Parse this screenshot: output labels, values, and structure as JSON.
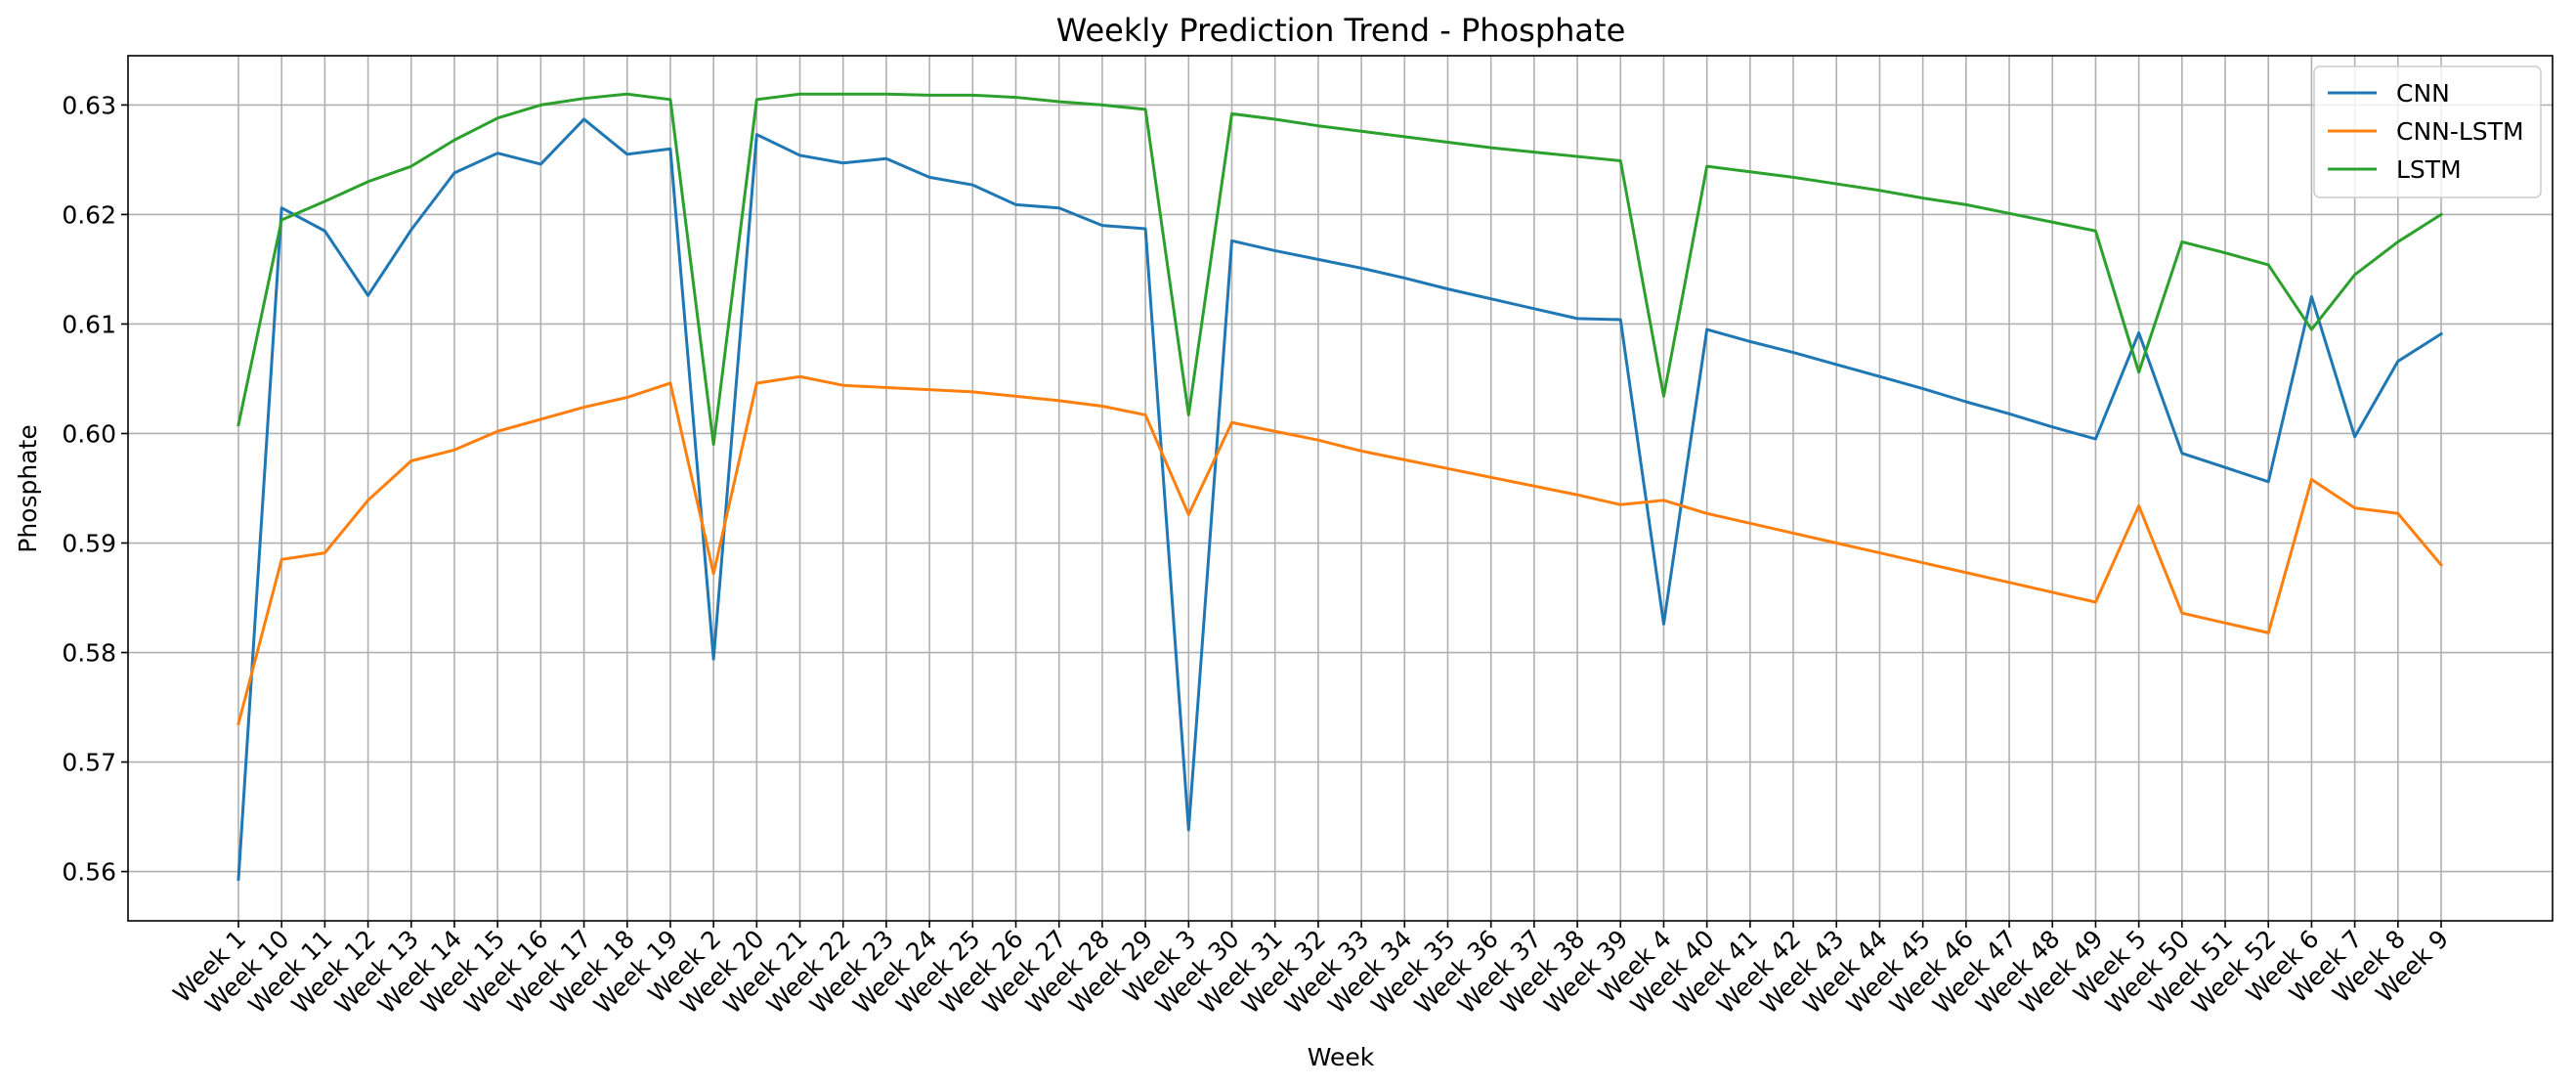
{
  "chart_data": {
    "type": "line",
    "title": "Weekly Prediction Trend - Phosphate",
    "xlabel": "Week",
    "ylabel": "Phosphate",
    "ylim": [
      0.5555,
      0.6345
    ],
    "yticks": [
      0.56,
      0.57,
      0.58,
      0.59,
      0.6,
      0.61,
      0.62,
      0.63
    ],
    "ytick_labels": [
      "0.56",
      "0.57",
      "0.58",
      "0.59",
      "0.60",
      "0.61",
      "0.62",
      "0.63"
    ],
    "grid": true,
    "legend_position": "top-right",
    "categories": [
      "Week 1",
      "Week 10",
      "Week 11",
      "Week 12",
      "Week 13",
      "Week 14",
      "Week 15",
      "Week 16",
      "Week 17",
      "Week 18",
      "Week 19",
      "Week 2",
      "Week 20",
      "Week 21",
      "Week 22",
      "Week 23",
      "Week 24",
      "Week 25",
      "Week 26",
      "Week 27",
      "Week 28",
      "Week 29",
      "Week 3",
      "Week 30",
      "Week 31",
      "Week 32",
      "Week 33",
      "Week 34",
      "Week 35",
      "Week 36",
      "Week 37",
      "Week 38",
      "Week 39",
      "Week 4",
      "Week 40",
      "Week 41",
      "Week 42",
      "Week 43",
      "Week 44",
      "Week 45",
      "Week 46",
      "Week 47",
      "Week 48",
      "Week 49",
      "Week 5",
      "Week 50",
      "Week 51",
      "Week 52",
      "Week 6",
      "Week 7",
      "Week 8",
      "Week 9"
    ],
    "series": [
      {
        "name": "CNN",
        "color": "#1f77b4",
        "values": [
          0.5593,
          0.6206,
          0.6185,
          0.6126,
          0.6186,
          0.6238,
          0.6256,
          0.6246,
          0.6287,
          0.6255,
          0.626,
          0.5794,
          0.6273,
          0.6254,
          0.6247,
          0.6251,
          0.6234,
          0.6227,
          0.6209,
          0.6206,
          0.619,
          0.6187,
          0.5638,
          0.6176,
          0.6167,
          0.6159,
          0.6151,
          0.6142,
          0.6132,
          0.6123,
          0.6114,
          0.6105,
          0.6104,
          0.5826,
          0.6095,
          0.6084,
          0.6074,
          0.6063,
          0.6052,
          0.6041,
          0.6029,
          0.6018,
          0.6006,
          0.5995,
          0.6092,
          0.5982,
          0.5969,
          0.5956,
          0.6125,
          0.5997,
          0.6066,
          0.6091
        ]
      },
      {
        "name": "CNN-LSTM",
        "color": "#ff7f0e",
        "values": [
          0.5735,
          0.5885,
          0.5891,
          0.5939,
          0.5975,
          0.5985,
          0.6002,
          0.6013,
          0.6024,
          0.6033,
          0.6046,
          0.5872,
          0.6046,
          0.6052,
          0.6044,
          0.6042,
          0.604,
          0.6038,
          0.6034,
          0.603,
          0.6025,
          0.6017,
          0.5926,
          0.601,
          0.6002,
          0.5994,
          0.5984,
          0.5976,
          0.5968,
          0.596,
          0.5952,
          0.5944,
          0.5935,
          0.5939,
          0.5927,
          0.5918,
          0.5909,
          0.59,
          0.5891,
          0.5882,
          0.5873,
          0.5864,
          0.5855,
          0.5846,
          0.5934,
          0.5836,
          0.5827,
          0.5818,
          0.5958,
          0.5932,
          0.5927,
          0.588
        ]
      },
      {
        "name": "LSTM",
        "color": "#2ca02c",
        "values": [
          0.6008,
          0.6195,
          0.6212,
          0.623,
          0.6244,
          0.6268,
          0.6288,
          0.63,
          0.6306,
          0.631,
          0.6305,
          0.599,
          0.6305,
          0.631,
          0.631,
          0.631,
          0.6309,
          0.6309,
          0.6307,
          0.6303,
          0.63,
          0.6296,
          0.6017,
          0.6292,
          0.6287,
          0.6281,
          0.6276,
          0.6271,
          0.6266,
          0.6261,
          0.6257,
          0.6253,
          0.6249,
          0.6034,
          0.6244,
          0.6239,
          0.6234,
          0.6228,
          0.6222,
          0.6215,
          0.6209,
          0.6201,
          0.6193,
          0.6185,
          0.6056,
          0.6175,
          0.6165,
          0.6154,
          0.6095,
          0.6145,
          0.6175,
          0.62
        ]
      }
    ]
  }
}
